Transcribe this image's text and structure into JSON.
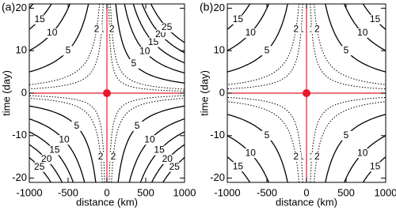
{
  "chart_data": [
    {
      "type": "contour",
      "panel_label": "(a)",
      "xlabel": "distance (km)",
      "ylabel": "time (day)",
      "xlim": [
        -1000,
        1000
      ],
      "ylim": [
        -21,
        21
      ],
      "xticks": [
        -1000,
        -500,
        0,
        500,
        1000
      ],
      "yticks": [
        -20,
        -10,
        0,
        10,
        20
      ],
      "levels": [
        1,
        2,
        5,
        10,
        15,
        20,
        25
      ],
      "dotted_levels": [
        1,
        2
      ],
      "line_color": "#000000",
      "marker": {
        "x": 0,
        "y": 0,
        "color": "#e8192c"
      }
    },
    {
      "type": "contour",
      "panel_label": "(b)",
      "xlabel": "distance (km)",
      "ylabel": "time (day)",
      "xlim": [
        -1000,
        1000
      ],
      "ylim": [
        -21,
        21
      ],
      "xticks": [
        -1000,
        -500,
        0,
        500,
        1000
      ],
      "yticks": [
        -20,
        -10,
        0,
        10,
        20
      ],
      "levels": [
        1,
        2,
        5,
        10,
        15
      ],
      "dotted_levels": [
        1,
        2
      ],
      "line_color": "#000000",
      "marker": {
        "x": 0,
        "y": 0,
        "color": "#e8192c"
      }
    }
  ]
}
